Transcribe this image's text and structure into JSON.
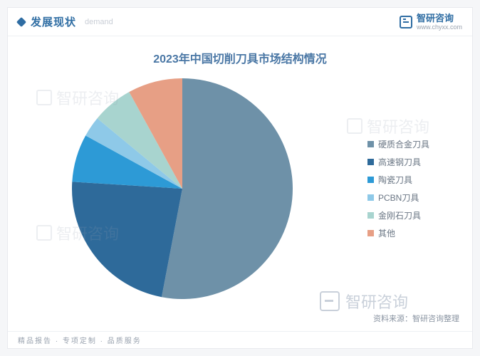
{
  "header": {
    "title": "发展现状",
    "subtitle": "demand",
    "brand_main": "智研咨询",
    "brand_sub": "www.chyxx.com"
  },
  "chart": {
    "type": "pie",
    "title": "2023年中国切削刀具市场结构情况",
    "title_color": "#4a77a5",
    "title_fontsize": 16,
    "background_color": "#ffffff",
    "slices": [
      {
        "label": "硬质合金刀具",
        "value": 53,
        "color": "#6e91a8"
      },
      {
        "label": "高速钢刀具",
        "value": 23,
        "color": "#2e6a9a"
      },
      {
        "label": "陶瓷刀具",
        "value": 7,
        "color": "#2d9ad6"
      },
      {
        "label": "PCBN刀具",
        "value": 3,
        "color": "#8ec9e8"
      },
      {
        "label": "金刚石刀具",
        "value": 6,
        "color": "#a8d4cf"
      },
      {
        "label": "其他",
        "value": 8,
        "color": "#e79f85"
      }
    ],
    "legend_fontsize": 12,
    "legend_text_color": "#6b7785",
    "source_text": "资料来源：智研咨询整理"
  },
  "watermark": {
    "text": "智研咨询"
  },
  "footer": {
    "text": "精品报告 · 专项定制 · 品质服务"
  }
}
